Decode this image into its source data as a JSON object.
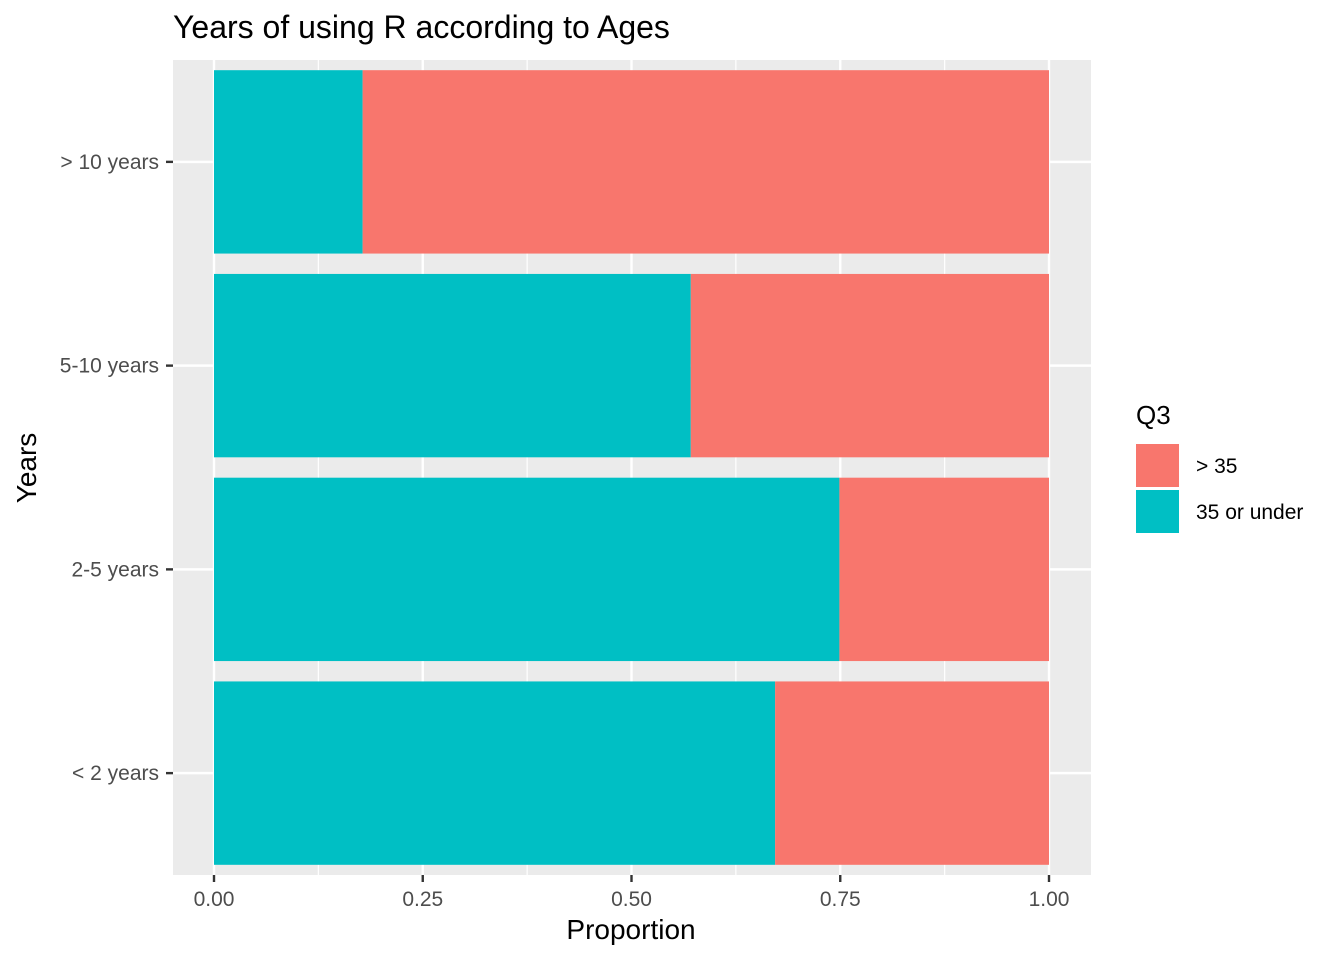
{
  "chart_data": {
    "type": "bar",
    "orientation": "horizontal",
    "stacked": true,
    "title": "Years of using R according to Ages",
    "xlabel": "Proportion",
    "ylabel": "Years",
    "xlim": [
      0,
      1
    ],
    "x_ticks": [
      "0.00",
      "0.25",
      "0.50",
      "0.75",
      "1.00"
    ],
    "categories": [
      "< 2 years",
      "2-5 years",
      "5-10 years",
      "> 10 years"
    ],
    "series": [
      {
        "name": "35 or under",
        "color": "#00BFC4",
        "values": [
          0.672,
          0.749,
          0.571,
          0.178
        ]
      },
      {
        "name": "> 35",
        "color": "#F8766D",
        "values": [
          0.328,
          0.251,
          0.429,
          0.822
        ]
      }
    ],
    "grid": true,
    "panel_background": "#EBEBEB",
    "legend": {
      "title": "Q3",
      "position": "right",
      "items": [
        {
          "label": "> 35",
          "color": "#F8766D"
        },
        {
          "label": "35 or under",
          "color": "#00BFC4"
        }
      ]
    }
  }
}
